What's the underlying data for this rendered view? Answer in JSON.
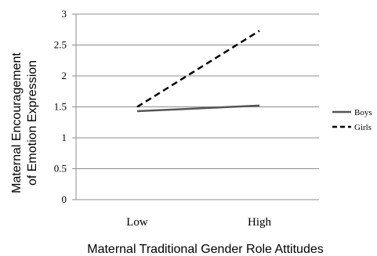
{
  "chart_data": {
    "type": "line",
    "categories": [
      "Low",
      "High"
    ],
    "series": [
      {
        "name": "Boys",
        "values": [
          1.43,
          1.52
        ],
        "style": "solid",
        "color": "#555555"
      },
      {
        "name": "Girls",
        "values": [
          1.5,
          2.73
        ],
        "style": "dashed",
        "color": "#000000"
      }
    ],
    "ylim": [
      0,
      3
    ],
    "yticks": [
      "0",
      "0.5",
      "1",
      "1.5",
      "2",
      "2.5",
      "3"
    ],
    "xlabel": "Maternal Traditional Gender Role Attitudes",
    "ylabel_line1": "Maternal Encouragement",
    "ylabel_line2": "of Emotion Expression",
    "grid": true,
    "legend_position": "right"
  }
}
